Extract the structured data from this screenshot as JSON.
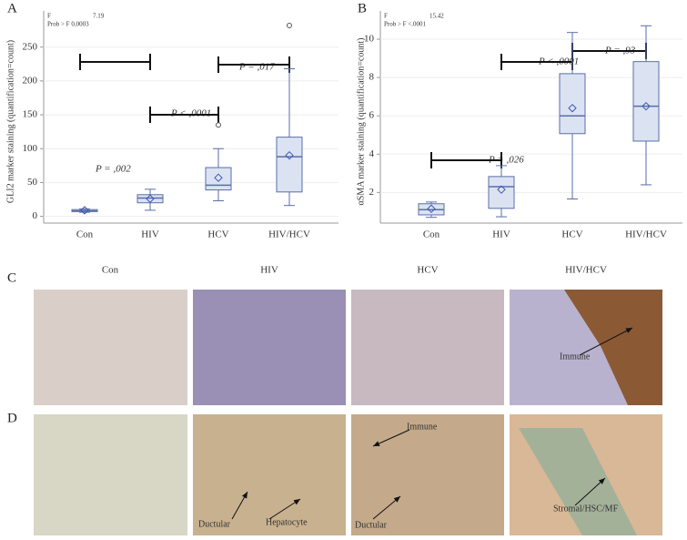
{
  "chart_data": [
    {
      "type": "box",
      "panel": "A",
      "ylabel": "GLI2 marker staining (quantification=count)",
      "categories": [
        "Con",
        "HIV",
        "HCV",
        "HIV/HCV"
      ],
      "boxes": [
        {
          "min": 6,
          "q1": 7,
          "median": 8,
          "q3": 10,
          "max": 11,
          "mean": 9
        },
        {
          "min": 9,
          "q1": 20,
          "median": 27,
          "q3": 32,
          "max": 40,
          "mean": 26
        },
        {
          "min": 23,
          "q1": 39,
          "median": 46,
          "q3": 72,
          "max": 100,
          "mean": 57,
          "outliers": [
            135
          ]
        },
        {
          "min": 16,
          "q1": 36,
          "median": 88,
          "q3": 117,
          "max": 218,
          "mean": 90,
          "outliers": [
            282
          ]
        }
      ],
      "ylim": [
        -10,
        290
      ],
      "yticks": [
        0,
        50,
        100,
        150,
        200,
        250
      ],
      "stats": [
        "F",
        "7.19",
        "Prob > F 0,0003"
      ],
      "annotations": [
        "P = ,002",
        "P < ,0001",
        "P = ,017"
      ],
      "color": "#dbe3f3",
      "line_color": "#5a6ea8"
    },
    {
      "type": "box",
      "panel": "B",
      "ylabel": "αSMA marker staining (quantification=count)",
      "categories": [
        "Con",
        "HIV",
        "HCV",
        "HIV/HCV"
      ],
      "boxes": [
        {
          "min": 0.7,
          "q1": 0.83,
          "median": 1.1,
          "q3": 1.41,
          "max": 1.5,
          "mean": 1.15
        },
        {
          "min": 0.73,
          "q1": 1.17,
          "median": 2.3,
          "q3": 2.83,
          "max": 3.4,
          "mean": 2.15
        },
        {
          "min": 1.66,
          "q1": 5.07,
          "median": 6,
          "q3": 8.2,
          "max": 10.35,
          "mean": 6.4
        },
        {
          "min": 2.4,
          "q1": 4.68,
          "median": 6.5,
          "q3": 8.83,
          "max": 10.7,
          "mean": 6.5
        }
      ],
      "ylim": [
        0.4,
        11
      ],
      "yticks": [
        2,
        4,
        6,
        8,
        10
      ],
      "stats": [
        "F",
        "15.42",
        "Prob > F <.0001"
      ],
      "annotations": [
        "P = ,026",
        "P < ,0001",
        "P = ,93"
      ],
      "color": "#dbe3f3",
      "line_color": "#5a6ea8"
    }
  ],
  "panels": {
    "C": "C",
    "D": "D",
    "columns": [
      "Con",
      "HIV",
      "HCV",
      "HIV/HCV"
    ],
    "C_labels": [
      "Immune"
    ],
    "D_labels": [
      "Ductular",
      "Hepatocyte",
      "Immune",
      "Ductular",
      "Stromal/HSC/MF"
    ]
  }
}
